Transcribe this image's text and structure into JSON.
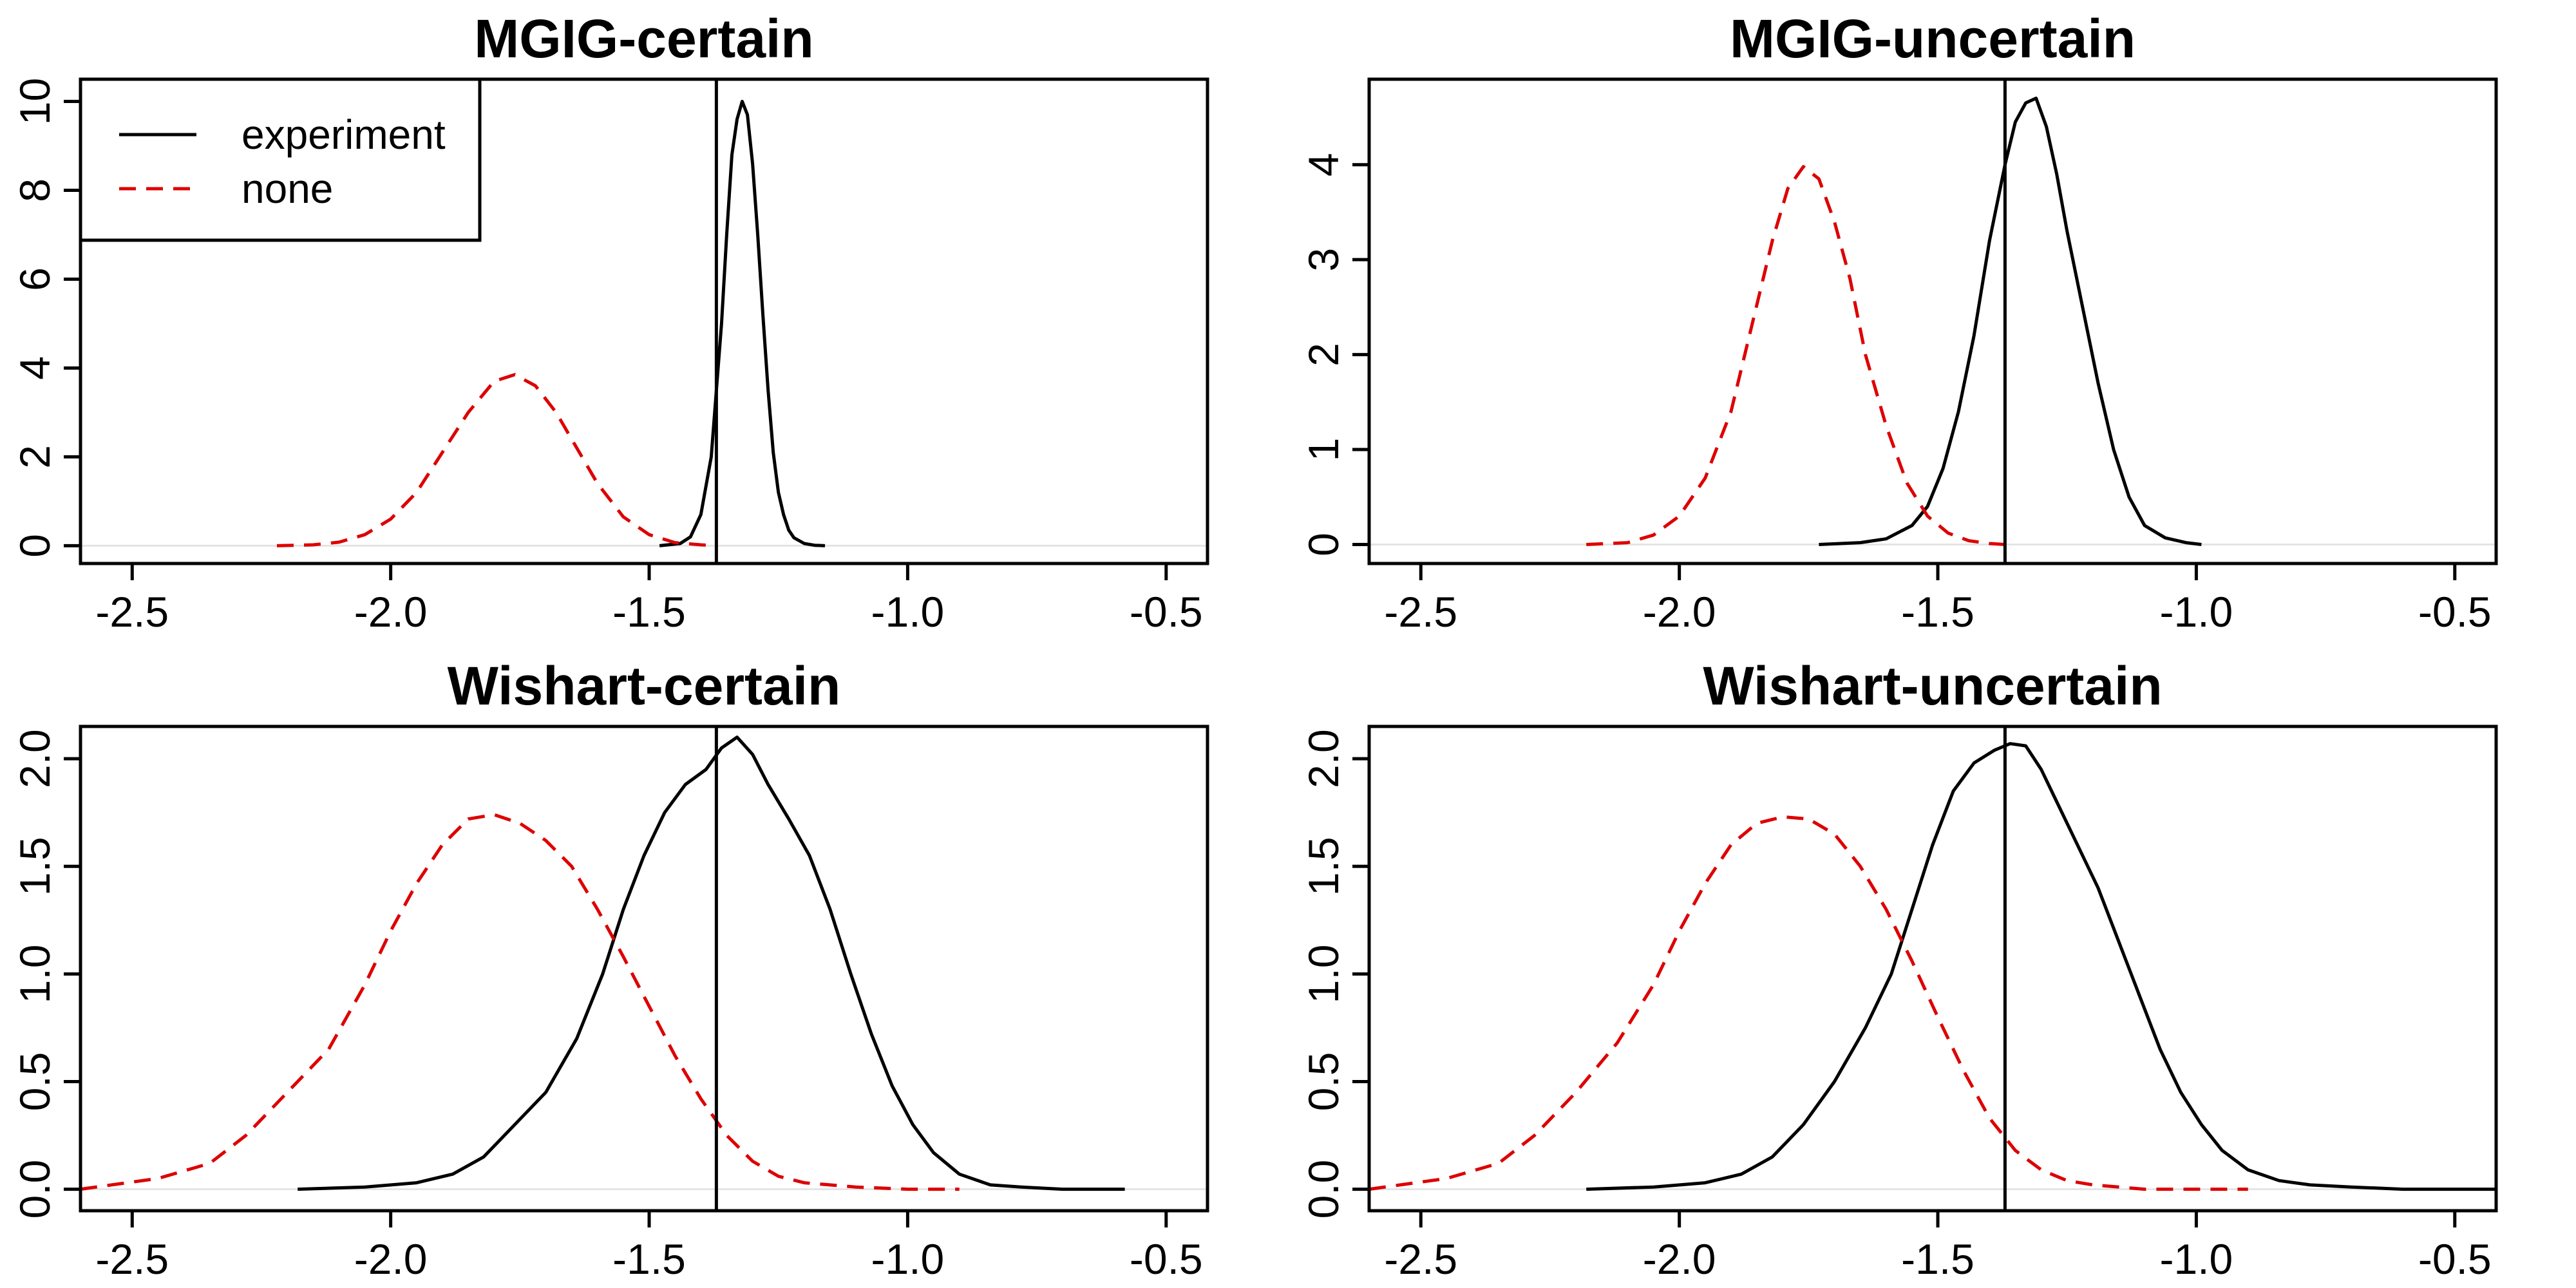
{
  "chart_data": [
    {
      "type": "line",
      "title": "MGIG-certain",
      "xlabel": "",
      "ylabel": "",
      "xlim": [
        -2.6,
        -0.42
      ],
      "ylim": [
        -0.4,
        10.5
      ],
      "xticks": [
        -2.5,
        -2.0,
        -1.5,
        -1.0,
        -0.5
      ],
      "xtick_labels": [
        "-2.5",
        "-2.0",
        "-1.5",
        "-1.0",
        "-0.5"
      ],
      "yticks": [
        0,
        2,
        4,
        6,
        8,
        10
      ],
      "ytick_labels": [
        "0",
        "2",
        "4",
        "6",
        "8",
        "10"
      ],
      "vline": -1.37,
      "legend": {
        "position": "top-left",
        "entries": [
          {
            "label": "experiment",
            "color": "#000000",
            "style": "solid"
          },
          {
            "label": "none",
            "color": "#dd0000",
            "style": "dashed"
          }
        ]
      },
      "series": [
        {
          "name": "experiment",
          "color": "#000000",
          "style": "solid",
          "x": [
            -1.48,
            -1.44,
            -1.42,
            -1.4,
            -1.38,
            -1.36,
            -1.35,
            -1.34,
            -1.33,
            -1.32,
            -1.31,
            -1.3,
            -1.29,
            -1.28,
            -1.27,
            -1.26,
            -1.25,
            -1.24,
            -1.23,
            -1.22,
            -1.2,
            -1.18,
            -1.16
          ],
          "y": [
            0.0,
            0.05,
            0.2,
            0.7,
            2.0,
            5.0,
            7.0,
            8.8,
            9.6,
            10.0,
            9.7,
            8.6,
            7.0,
            5.2,
            3.5,
            2.1,
            1.2,
            0.7,
            0.35,
            0.18,
            0.05,
            0.01,
            0.0
          ]
        },
        {
          "name": "none",
          "color": "#dd0000",
          "style": "dashed",
          "x": [
            -2.22,
            -2.15,
            -2.1,
            -2.05,
            -2.0,
            -1.95,
            -1.9,
            -1.85,
            -1.8,
            -1.76,
            -1.72,
            -1.68,
            -1.64,
            -1.6,
            -1.55,
            -1.5,
            -1.45,
            -1.4,
            -1.37
          ],
          "y": [
            0.0,
            0.02,
            0.08,
            0.25,
            0.6,
            1.2,
            2.1,
            3.0,
            3.7,
            3.85,
            3.6,
            3.0,
            2.2,
            1.4,
            0.65,
            0.25,
            0.07,
            0.02,
            0.0
          ]
        }
      ]
    },
    {
      "type": "line",
      "title": "MGIG-uncertain",
      "xlabel": "",
      "ylabel": "",
      "xlim": [
        -2.6,
        -0.42
      ],
      "ylim": [
        -0.2,
        4.9
      ],
      "xticks": [
        -2.5,
        -2.0,
        -1.5,
        -1.0,
        -0.5
      ],
      "xtick_labels": [
        "-2.5",
        "-2.0",
        "-1.5",
        "-1.0",
        "-0.5"
      ],
      "yticks": [
        0,
        1,
        2,
        3,
        4
      ],
      "ytick_labels": [
        "0",
        "1",
        "2",
        "3",
        "4"
      ],
      "vline": -1.37,
      "series": [
        {
          "name": "experiment",
          "color": "#000000",
          "style": "solid",
          "x": [
            -1.73,
            -1.65,
            -1.6,
            -1.55,
            -1.52,
            -1.49,
            -1.46,
            -1.43,
            -1.4,
            -1.37,
            -1.35,
            -1.33,
            -1.31,
            -1.29,
            -1.27,
            -1.25,
            -1.22,
            -1.19,
            -1.16,
            -1.13,
            -1.1,
            -1.06,
            -1.02,
            -0.99
          ],
          "y": [
            0.0,
            0.02,
            0.06,
            0.2,
            0.4,
            0.8,
            1.4,
            2.2,
            3.2,
            4.0,
            4.45,
            4.65,
            4.7,
            4.4,
            3.9,
            3.3,
            2.5,
            1.7,
            1.0,
            0.5,
            0.2,
            0.07,
            0.02,
            0.0
          ]
        },
        {
          "name": "none",
          "color": "#dd0000",
          "style": "dashed",
          "x": [
            -2.18,
            -2.1,
            -2.05,
            -2.0,
            -1.95,
            -1.9,
            -1.86,
            -1.82,
            -1.79,
            -1.76,
            -1.73,
            -1.7,
            -1.67,
            -1.64,
            -1.6,
            -1.56,
            -1.52,
            -1.48,
            -1.44,
            -1.4,
            -1.37
          ],
          "y": [
            0.0,
            0.02,
            0.1,
            0.3,
            0.7,
            1.4,
            2.3,
            3.2,
            3.75,
            3.98,
            3.85,
            3.4,
            2.8,
            2.0,
            1.25,
            0.65,
            0.3,
            0.12,
            0.04,
            0.01,
            0.0
          ]
        }
      ]
    },
    {
      "type": "line",
      "title": "Wishart-certain",
      "xlabel": "",
      "ylabel": "",
      "xlim": [
        -2.6,
        -0.42
      ],
      "ylim": [
        -0.1,
        2.15
      ],
      "xticks": [
        -2.5,
        -2.0,
        -1.5,
        -1.0,
        -0.5
      ],
      "xtick_labels": [
        "-2.5",
        "-2.0",
        "-1.5",
        "-1.0",
        "-0.5"
      ],
      "yticks": [
        0.0,
        0.5,
        1.0,
        1.5,
        2.0
      ],
      "ytick_labels": [
        "0.0",
        "0.5",
        "1.0",
        "1.5",
        "2.0"
      ],
      "vline": -1.37,
      "series": [
        {
          "name": "experiment",
          "color": "#000000",
          "style": "solid",
          "x": [
            -2.18,
            -2.05,
            -1.95,
            -1.88,
            -1.82,
            -1.76,
            -1.7,
            -1.64,
            -1.59,
            -1.55,
            -1.51,
            -1.47,
            -1.43,
            -1.39,
            -1.36,
            -1.33,
            -1.3,
            -1.27,
            -1.23,
            -1.19,
            -1.15,
            -1.11,
            -1.07,
            -1.03,
            -0.99,
            -0.95,
            -0.9,
            -0.84,
            -0.78,
            -0.7,
            -0.58
          ],
          "y": [
            0.0,
            0.01,
            0.03,
            0.07,
            0.15,
            0.3,
            0.45,
            0.7,
            1.0,
            1.3,
            1.55,
            1.75,
            1.88,
            1.95,
            2.05,
            2.1,
            2.02,
            1.88,
            1.72,
            1.55,
            1.3,
            1.0,
            0.72,
            0.48,
            0.3,
            0.17,
            0.07,
            0.02,
            0.01,
            0.0,
            0.0
          ]
        },
        {
          "name": "none",
          "color": "#dd0000",
          "style": "dashed",
          "x": [
            -2.6,
            -2.45,
            -2.35,
            -2.28,
            -2.2,
            -2.12,
            -2.05,
            -2.0,
            -1.95,
            -1.9,
            -1.85,
            -1.8,
            -1.75,
            -1.7,
            -1.65,
            -1.6,
            -1.55,
            -1.5,
            -1.45,
            -1.4,
            -1.35,
            -1.3,
            -1.25,
            -1.2,
            -1.1,
            -1.0,
            -0.9
          ],
          "y": [
            0.0,
            0.05,
            0.12,
            0.25,
            0.45,
            0.65,
            0.95,
            1.2,
            1.42,
            1.6,
            1.72,
            1.74,
            1.7,
            1.62,
            1.5,
            1.3,
            1.08,
            0.85,
            0.62,
            0.42,
            0.25,
            0.13,
            0.06,
            0.03,
            0.01,
            0.0,
            0.0
          ]
        }
      ]
    },
    {
      "type": "line",
      "title": "Wishart-uncertain",
      "xlabel": "",
      "ylabel": "",
      "xlim": [
        -2.6,
        -0.42
      ],
      "ylim": [
        -0.1,
        2.15
      ],
      "xticks": [
        -2.5,
        -2.0,
        -1.5,
        -1.0,
        -0.5
      ],
      "xtick_labels": [
        "-2.5",
        "-2.0",
        "-1.5",
        "-1.0",
        "-0.5"
      ],
      "yticks": [
        0.0,
        0.5,
        1.0,
        1.5,
        2.0
      ],
      "ytick_labels": [
        "0.0",
        "0.5",
        "1.0",
        "1.5",
        "2.0"
      ],
      "vline": -1.37,
      "series": [
        {
          "name": "experiment",
          "color": "#000000",
          "style": "solid",
          "x": [
            -2.18,
            -2.05,
            -1.95,
            -1.88,
            -1.82,
            -1.76,
            -1.7,
            -1.64,
            -1.59,
            -1.55,
            -1.51,
            -1.47,
            -1.43,
            -1.39,
            -1.36,
            -1.33,
            -1.3,
            -1.27,
            -1.23,
            -1.19,
            -1.15,
            -1.11,
            -1.07,
            -1.03,
            -0.99,
            -0.95,
            -0.9,
            -0.84,
            -0.78,
            -0.7,
            -0.6,
            -0.42
          ],
          "y": [
            0.0,
            0.01,
            0.03,
            0.07,
            0.15,
            0.3,
            0.5,
            0.75,
            1.0,
            1.3,
            1.6,
            1.85,
            1.98,
            2.04,
            2.07,
            2.06,
            1.95,
            1.8,
            1.6,
            1.4,
            1.15,
            0.9,
            0.65,
            0.45,
            0.3,
            0.18,
            0.09,
            0.04,
            0.02,
            0.01,
            0.0,
            0.0
          ]
        },
        {
          "name": "none",
          "color": "#dd0000",
          "style": "dashed",
          "x": [
            -2.6,
            -2.45,
            -2.35,
            -2.28,
            -2.2,
            -2.12,
            -2.05,
            -2.0,
            -1.95,
            -1.9,
            -1.85,
            -1.8,
            -1.75,
            -1.7,
            -1.65,
            -1.6,
            -1.55,
            -1.5,
            -1.45,
            -1.4,
            -1.35,
            -1.3,
            -1.25,
            -1.2,
            -1.1,
            -1.0,
            -0.9
          ],
          "y": [
            0.0,
            0.05,
            0.12,
            0.25,
            0.45,
            0.68,
            0.95,
            1.2,
            1.42,
            1.6,
            1.7,
            1.73,
            1.72,
            1.65,
            1.5,
            1.3,
            1.06,
            0.8,
            0.55,
            0.33,
            0.18,
            0.09,
            0.04,
            0.02,
            0.0,
            0.0,
            0.0
          ]
        }
      ]
    }
  ]
}
